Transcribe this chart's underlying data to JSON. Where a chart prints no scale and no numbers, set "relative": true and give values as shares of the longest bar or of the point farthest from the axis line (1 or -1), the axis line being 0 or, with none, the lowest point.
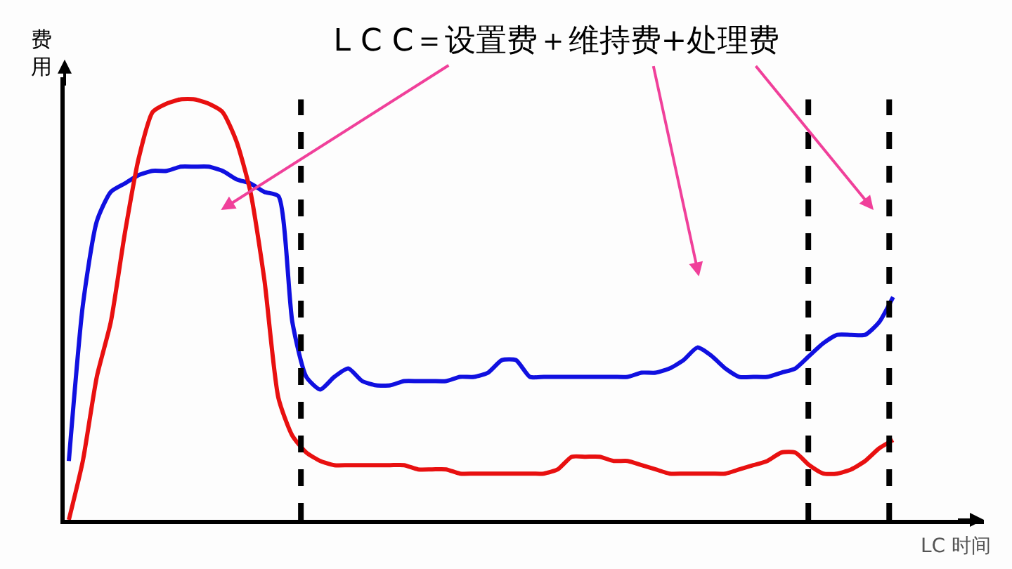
{
  "chart_data": {
    "type": "line",
    "title": "L C C＝设置费＋维持费+处理费",
    "ylabel": "费用",
    "xlabel": "LC 时间",
    "relative": true,
    "categories": [
      null,
      null,
      null,
      null,
      null,
      null,
      null,
      null,
      null,
      null,
      null,
      null,
      null,
      null,
      null,
      null,
      null,
      null,
      null,
      null,
      null,
      null,
      null,
      null,
      null,
      null,
      null,
      null,
      null,
      null,
      null,
      null,
      null,
      null,
      null,
      null,
      null,
      null,
      null,
      null,
      null,
      null,
      null,
      null,
      null,
      null,
      null,
      null,
      null,
      null,
      null,
      null,
      null,
      null,
      null,
      null,
      null,
      null,
      null,
      null
    ],
    "series": [
      {
        "color": "#1010e0",
        "values": [
          0.14,
          0.51,
          0.71,
          0.78,
          0.8,
          0.82,
          0.83,
          0.83,
          0.84,
          0.84,
          0.84,
          0.83,
          0.81,
          0.8,
          0.78,
          0.77,
          0.47,
          0.34,
          0.31,
          0.34,
          0.36,
          0.33,
          0.32,
          0.32,
          0.33,
          0.33,
          0.33,
          0.33,
          0.34,
          0.34,
          0.35,
          0.38,
          0.38,
          0.34,
          0.34,
          0.34,
          0.34,
          0.34,
          0.34,
          0.34,
          0.34,
          0.35,
          0.35,
          0.36,
          0.38,
          0.41,
          0.39,
          0.36,
          0.34,
          0.34,
          0.34,
          0.35,
          0.36,
          0.39,
          0.42,
          0.44,
          0.44,
          0.44,
          0.47,
          0.53
        ]
      },
      {
        "color": "#e81010",
        "values": [
          0,
          0.14,
          0.34,
          0.47,
          0.68,
          0.86,
          0.97,
          0.99,
          1,
          1,
          0.99,
          0.97,
          0.9,
          0.78,
          0.57,
          0.29,
          0.2,
          0.16,
          0.14,
          0.13,
          0.13,
          0.13,
          0.13,
          0.13,
          0.13,
          0.12,
          0.12,
          0.12,
          0.11,
          0.11,
          0.11,
          0.11,
          0.11,
          0.11,
          0.11,
          0.12,
          0.15,
          0.15,
          0.15,
          0.14,
          0.14,
          0.13,
          0.12,
          0.11,
          0.11,
          0.11,
          0.11,
          0.11,
          0.12,
          0.13,
          0.14,
          0.16,
          0.16,
          0.13,
          0.11,
          0.11,
          0.12,
          0.14,
          0.17,
          0.19
        ]
      }
    ],
    "marker": "none",
    "line_style": "solid"
  }
}
